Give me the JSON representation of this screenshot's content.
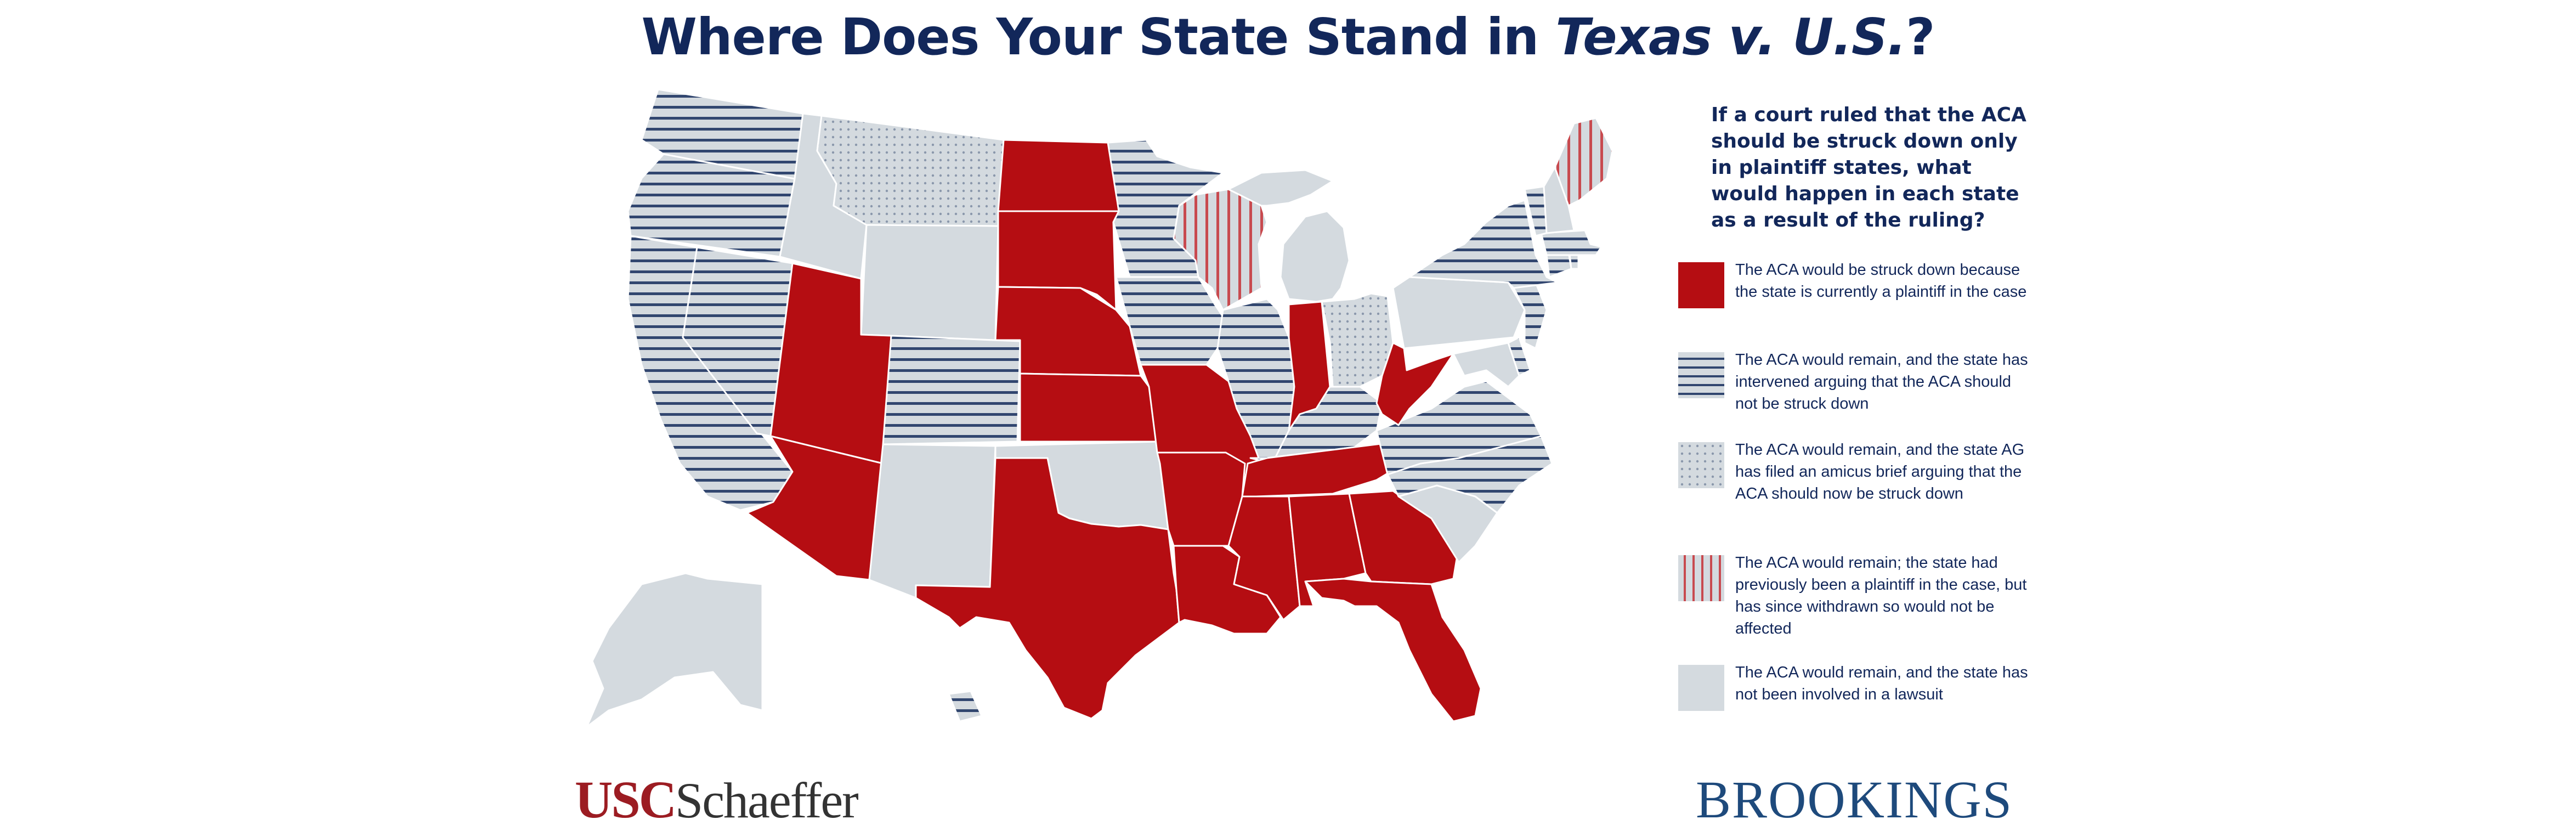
{
  "title": {
    "prefix": "Where Does Your State Stand in ",
    "emphasis": "Texas v. U.S.",
    "suffix": "?"
  },
  "question": "If a court ruled that the ACA should be struck down only in plaintiff states, what would happen in each state as a result of the ruling?",
  "colors": {
    "plaintiff": "#b50d12",
    "intervened_stripe": "#31466f",
    "neutral": "#d4dadf",
    "amicus_dot": "#8a97ab",
    "withdrawn_stripe": "#c84a4f",
    "title": "#12275a"
  },
  "legend": [
    {
      "id": "plaintiff",
      "text": "The ACA would be struck down because the state is currently a plaintiff in the case"
    },
    {
      "id": "intervened",
      "text": "The ACA would remain, and the state has intervened arguing that the ACA should not be struck down"
    },
    {
      "id": "amicus",
      "text": "The ACA would remain, and the state AG has filed an amicus brief arguing that the ACA should now be struck down"
    },
    {
      "id": "withdrawn",
      "text": "The ACA would remain; the state had previously been a plaintiff in the case, but has since withdrawn so would not be affected"
    },
    {
      "id": "none",
      "text": "The ACA would remain, and the state has not been involved in a lawsuit"
    }
  ],
  "state_categories": {
    "plaintiff": [
      "Arizona",
      "Utah",
      "North Dakota",
      "South Dakota",
      "Nebraska",
      "Kansas",
      "Texas",
      "Missouri",
      "Arkansas",
      "Louisiana",
      "Mississippi",
      "Alabama",
      "Tennessee",
      "Georgia",
      "Florida",
      "Indiana",
      "West Virginia"
    ],
    "intervened": [
      "Washington",
      "Oregon",
      "California",
      "Nevada",
      "Colorado",
      "Minnesota",
      "Iowa",
      "Illinois",
      "Kentucky",
      "Virginia",
      "North Carolina",
      "New York",
      "Vermont",
      "Massachusetts",
      "Connecticut",
      "Rhode Island",
      "New Jersey",
      "Delaware",
      "Hawaii"
    ],
    "amicus": [
      "Montana",
      "Ohio"
    ],
    "withdrawn": [
      "Wisconsin",
      "Maine"
    ],
    "none": [
      "Idaho",
      "Wyoming",
      "New Mexico",
      "Oklahoma",
      "Michigan",
      "Pennsylvania",
      "South Carolina",
      "New Hampshire",
      "Maryland",
      "Alaska"
    ]
  },
  "logos": {
    "usc_mark": "USC",
    "usc_name": "Schaeffer",
    "brookings": "BROOKINGS"
  }
}
